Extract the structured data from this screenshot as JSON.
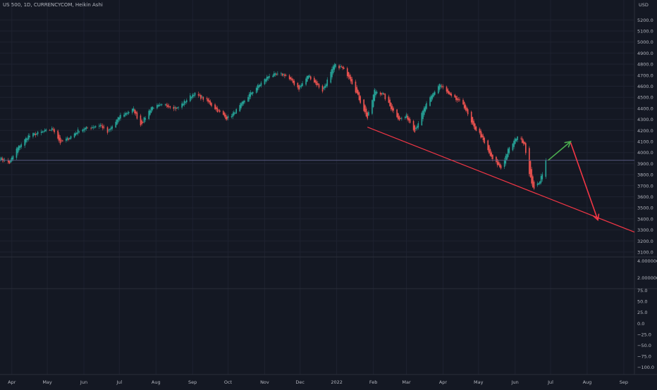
{
  "header": {
    "title": "US 500, 1D, CURRENCYCOM, Heikin Ashi"
  },
  "price_axis": {
    "unit": "USD",
    "ticks": [
      5200,
      5100,
      5000,
      4900,
      4800,
      4700,
      4600,
      4500,
      4400,
      4300,
      4200,
      4100,
      4000,
      3900,
      3800,
      3700,
      3600,
      3500,
      3400,
      3300,
      3200,
      3100
    ]
  },
  "pane2_axis": {
    "ticks": [
      "4.000000",
      "2.000000"
    ]
  },
  "pane3_axis": {
    "ticks": [
      "75.0",
      "50.0",
      "25.0",
      "0.0",
      "−25.0",
      "−50.0",
      "−75.0",
      "−100.0"
    ]
  },
  "time_axis": {
    "labels": [
      "Apr",
      "May",
      "Jun",
      "Jul",
      "Aug",
      "Sep",
      "Oct",
      "Nov",
      "Dec",
      "2022",
      "Feb",
      "Mar",
      "Apr",
      "May",
      "Jun",
      "Jul",
      "Aug",
      "Sep"
    ]
  },
  "colors": {
    "background": "#141823",
    "grid": "#1e2230",
    "up": "#26a69a",
    "down": "#ef5350",
    "trendline": "#f23645",
    "arrow_up": "#4caf50",
    "arrow_down": "#f23645",
    "hline": "#5c5f8a",
    "axis_text": "#b2b5be"
  },
  "chart_data": {
    "type": "candlestick",
    "chart_style": "Heikin Ashi",
    "ylim": [
      3050,
      5270
    ],
    "x_range": [
      "2021-03-22",
      "2022-09-10"
    ],
    "anchors": [
      [
        "2021-03-22",
        3950
      ],
      [
        "2021-03-30",
        3905
      ],
      [
        "2021-04-05",
        4030
      ],
      [
        "2021-04-15",
        4150
      ],
      [
        "2021-04-28",
        4190
      ],
      [
        "2021-05-06",
        4215
      ],
      [
        "2021-05-12",
        4090
      ],
      [
        "2021-05-19",
        4130
      ],
      [
        "2021-05-28",
        4205
      ],
      [
        "2021-06-15",
        4250
      ],
      [
        "2021-06-21",
        4180
      ],
      [
        "2021-07-02",
        4335
      ],
      [
        "2021-07-13",
        4390
      ],
      [
        "2021-07-19",
        4250
      ],
      [
        "2021-07-28",
        4410
      ],
      [
        "2021-08-10",
        4430
      ],
      [
        "2021-08-19",
        4400
      ],
      [
        "2021-09-02",
        4535
      ],
      [
        "2021-09-13",
        4470
      ],
      [
        "2021-09-22",
        4380
      ],
      [
        "2021-09-30",
        4310
      ],
      [
        "2021-10-06",
        4355
      ],
      [
        "2021-10-20",
        4535
      ],
      [
        "2021-11-05",
        4700
      ],
      [
        "2021-11-18",
        4705
      ],
      [
        "2021-11-30",
        4580
      ],
      [
        "2021-12-08",
        4700
      ],
      [
        "2021-12-20",
        4560
      ],
      [
        "2021-12-30",
        4790
      ],
      [
        "2022-01-05",
        4770
      ],
      [
        "2022-01-12",
        4680
      ],
      [
        "2022-01-19",
        4510
      ],
      [
        "2022-01-27",
        4310
      ],
      [
        "2022-02-02",
        4560
      ],
      [
        "2022-02-09",
        4530
      ],
      [
        "2022-02-15",
        4420
      ],
      [
        "2022-02-23",
        4300
      ],
      [
        "2022-03-01",
        4330
      ],
      [
        "2022-03-08",
        4200
      ],
      [
        "2022-03-17",
        4420
      ],
      [
        "2022-03-29",
        4620
      ],
      [
        "2022-04-07",
        4510
      ],
      [
        "2022-04-18",
        4440
      ],
      [
        "2022-04-26",
        4240
      ],
      [
        "2022-05-02",
        4170
      ],
      [
        "2022-05-12",
        3950
      ],
      [
        "2022-05-20",
        3860
      ],
      [
        "2022-05-26",
        4020
      ],
      [
        "2022-06-03",
        4150
      ],
      [
        "2022-06-09",
        4080
      ],
      [
        "2022-06-13",
        3800
      ],
      [
        "2022-06-17",
        3660
      ],
      [
        "2022-06-22",
        3750
      ],
      [
        "2022-06-27",
        3920
      ]
    ],
    "price_line": 3930,
    "annotations": {
      "trendline": {
        "from": [
          "2022-01-27",
          4230
        ],
        "to": [
          "2022-09-10",
          3280
        ]
      },
      "arrow_up": {
        "from": [
          "2022-06-29",
          3930
        ],
        "to": [
          "2022-07-18",
          4100
        ]
      },
      "arrow_down": {
        "from": [
          "2022-07-18",
          4090
        ],
        "to": [
          "2022-08-10",
          3390
        ]
      }
    }
  }
}
